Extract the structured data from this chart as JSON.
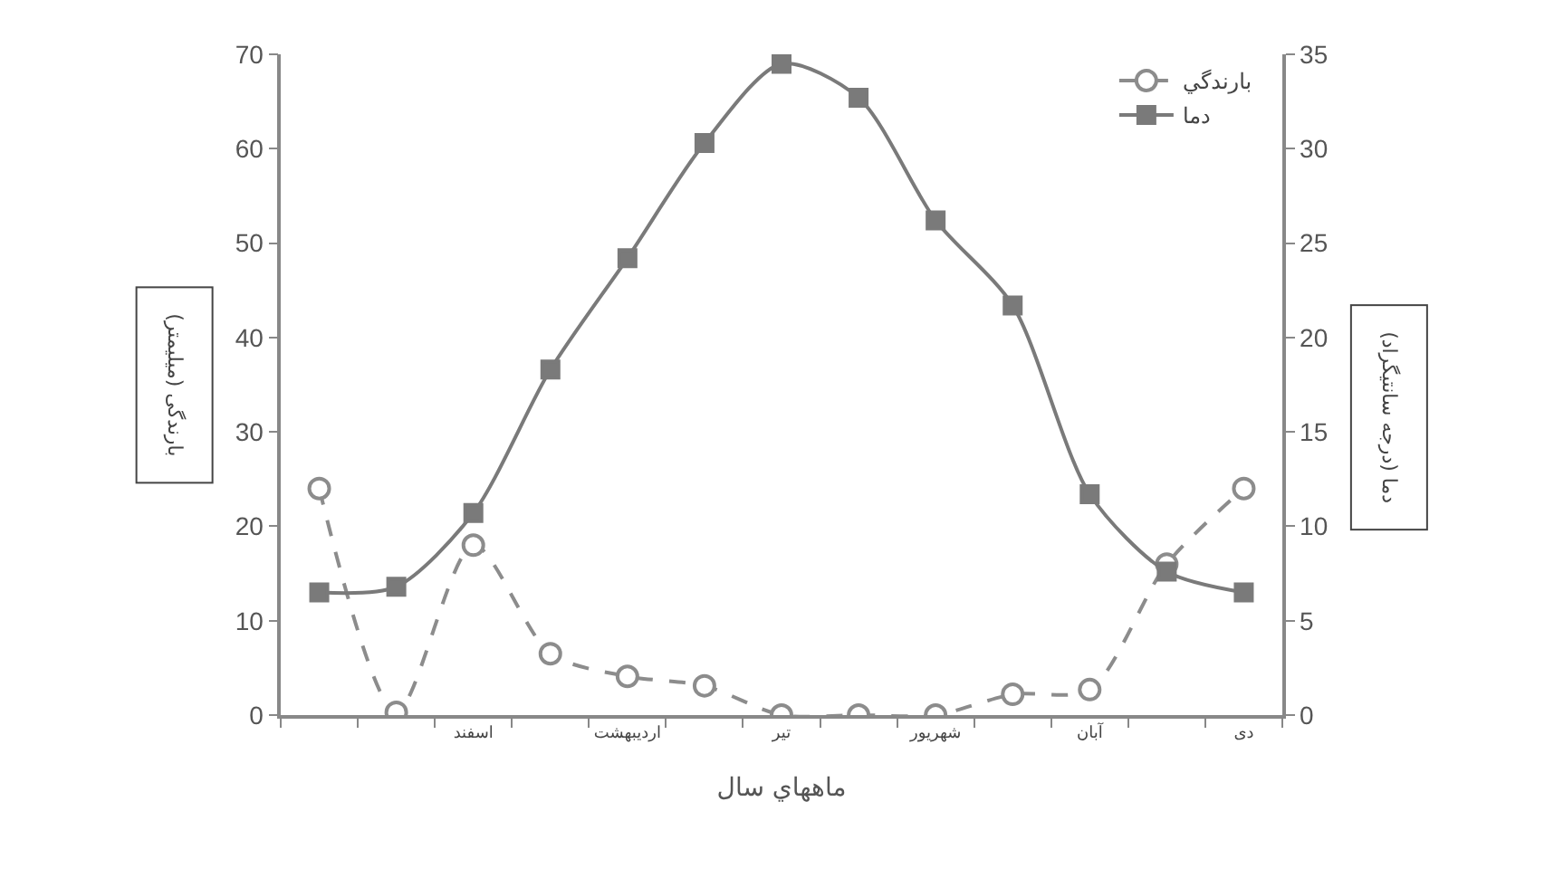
{
  "chart_data": {
    "type": "line",
    "xlabel": "ماههاي سال",
    "ylabel": "بارندگی (میلیمتر)",
    "y2label": "دما (درجه سانتیگراد)",
    "categories": [
      null,
      null,
      "اسفند",
      null,
      "اردیبهشت",
      null,
      "تیر",
      null,
      "شهریور",
      null,
      "آبان",
      null,
      "دی"
    ],
    "series": [
      {
        "name": "بارندگي",
        "color": "#8c8c8c",
        "marker": "circle",
        "line_style": "dashed",
        "values": [
          24,
          0.3,
          18,
          6.5,
          4.1,
          3.1,
          0,
          0,
          0,
          2.2,
          2.7,
          16,
          24
        ]
      },
      {
        "name": "دما",
        "color": "#7a7a7a",
        "marker": "square",
        "line_style": "solid",
        "axis": "y2",
        "values": [
          6.5,
          6.8,
          10.7,
          18.3,
          24.2,
          30.3,
          34.5,
          32.7,
          26.2,
          21.7,
          11.7,
          7.6,
          6.5
        ]
      }
    ],
    "ylim": [
      0,
      70
    ],
    "yticks": [
      0,
      10,
      20,
      30,
      40,
      50,
      60,
      70
    ],
    "y2lim": [
      0,
      35
    ],
    "y2ticks": [
      0,
      5,
      10,
      15,
      20,
      25,
      30,
      35
    ],
    "grid": false,
    "legend": "top right"
  }
}
